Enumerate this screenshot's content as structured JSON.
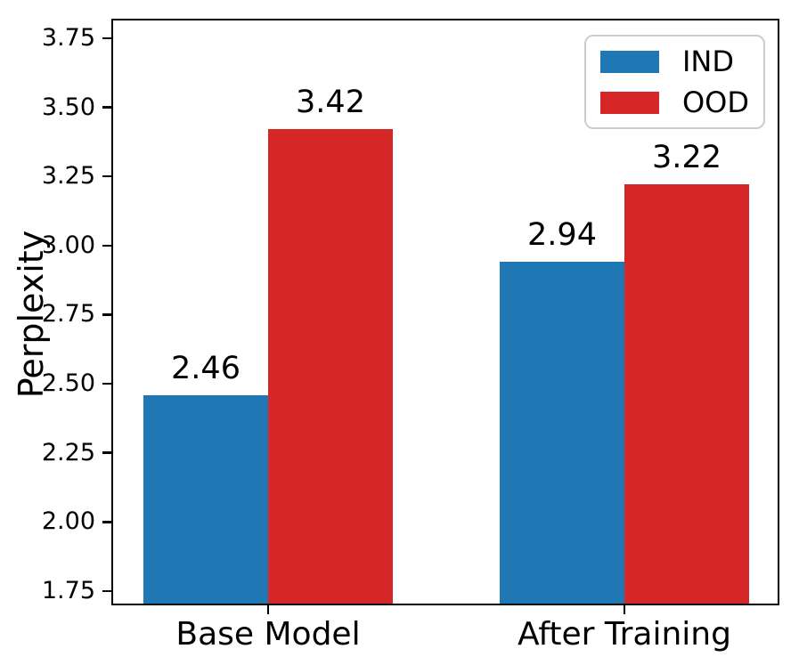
{
  "chart_data": {
    "type": "bar",
    "title": "",
    "xlabel": "",
    "ylabel": "Perplexity",
    "categories": [
      "Base Model",
      "After Training"
    ],
    "series": [
      {
        "name": "IND",
        "color": "#1f77b4",
        "values": [
          2.46,
          2.94
        ],
        "labels": [
          "2.46",
          "2.94"
        ]
      },
      {
        "name": "OOD",
        "color": "#d62728",
        "values": [
          3.42,
          3.22
        ],
        "labels": [
          "3.42",
          "3.22"
        ]
      }
    ],
    "ylim": [
      1.705,
      3.814
    ],
    "yticks": [
      {
        "value": 3.75,
        "label": "3.75"
      },
      {
        "value": 3.5,
        "label": "3.50"
      },
      {
        "value": 3.25,
        "label": "3.25"
      },
      {
        "value": 3.0,
        "label": "3.00"
      },
      {
        "value": 2.75,
        "label": "2.75"
      },
      {
        "value": 2.5,
        "label": "2.50"
      },
      {
        "value": 2.25,
        "label": "2.25"
      },
      {
        "value": 2.0,
        "label": "2.00"
      },
      {
        "value": 1.75,
        "label": "1.75"
      }
    ],
    "legend": {
      "position": "upper-right",
      "entries": [
        {
          "label": "IND",
          "color": "#1f77b4"
        },
        {
          "label": "OOD",
          "color": "#d62728"
        }
      ]
    },
    "grid": false,
    "background": "#ffffff"
  }
}
